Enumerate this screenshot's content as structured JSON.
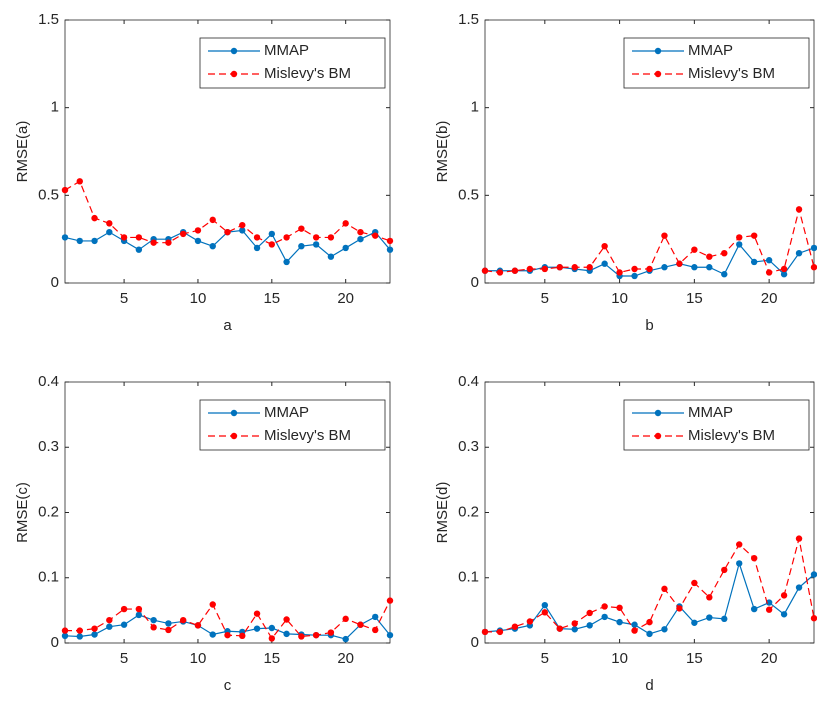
{
  "chart_data": [
    {
      "type": "line",
      "xlabel": "a",
      "ylabel": "RMSE(a)",
      "x": [
        1,
        2,
        3,
        4,
        5,
        6,
        7,
        8,
        9,
        10,
        11,
        12,
        13,
        14,
        15,
        16,
        17,
        18,
        19,
        20,
        21,
        22,
        23
      ],
      "xlim": [
        1,
        23
      ],
      "xticks": [
        5,
        10,
        15,
        20
      ],
      "ylim": [
        0,
        1.5
      ],
      "yticks": [
        0,
        0.5,
        1,
        1.5
      ],
      "legend": "upper right",
      "series": [
        {
          "name": "MMAP",
          "color": "#0072bd",
          "linestyle": "solid",
          "values": [
            0.26,
            0.24,
            0.24,
            0.29,
            0.24,
            0.19,
            0.25,
            0.25,
            0.29,
            0.24,
            0.21,
            0.29,
            0.3,
            0.2,
            0.28,
            0.12,
            0.21,
            0.22,
            0.15,
            0.2,
            0.25,
            0.29,
            0.19
          ]
        },
        {
          "name": "Mislevy's BM",
          "color": "#ff0000",
          "linestyle": "dashed",
          "values": [
            0.53,
            0.58,
            0.37,
            0.34,
            0.26,
            0.26,
            0.23,
            0.23,
            0.28,
            0.3,
            0.36,
            0.29,
            0.33,
            0.26,
            0.22,
            0.26,
            0.31,
            0.26,
            0.26,
            0.34,
            0.29,
            0.27,
            0.24
          ]
        }
      ]
    },
    {
      "type": "line",
      "xlabel": "b",
      "ylabel": "RMSE(b)",
      "x": [
        1,
        2,
        3,
        4,
        5,
        6,
        7,
        8,
        9,
        10,
        11,
        12,
        13,
        14,
        15,
        16,
        17,
        18,
        19,
        20,
        21,
        22,
        23
      ],
      "xlim": [
        1,
        23
      ],
      "xticks": [
        5,
        10,
        15,
        20
      ],
      "ylim": [
        0,
        1.5
      ],
      "yticks": [
        0,
        0.5,
        1,
        1.5
      ],
      "legend": "upper right",
      "series": [
        {
          "name": "MMAP",
          "color": "#0072bd",
          "linestyle": "solid",
          "values": [
            0.07,
            0.07,
            0.07,
            0.07,
            0.09,
            0.09,
            0.08,
            0.07,
            0.11,
            0.04,
            0.04,
            0.07,
            0.09,
            0.11,
            0.09,
            0.09,
            0.05,
            0.22,
            0.12,
            0.13,
            0.05,
            0.17,
            0.2
          ]
        },
        {
          "name": "Mislevy's BM",
          "color": "#ff0000",
          "linestyle": "dashed",
          "values": [
            0.07,
            0.06,
            0.07,
            0.08,
            0.08,
            0.09,
            0.09,
            0.09,
            0.21,
            0.06,
            0.08,
            0.08,
            0.27,
            0.11,
            0.19,
            0.15,
            0.17,
            0.26,
            0.27,
            0.06,
            0.08,
            0.42,
            0.09
          ]
        }
      ]
    },
    {
      "type": "line",
      "xlabel": "c",
      "ylabel": "RMSE(c)",
      "x": [
        1,
        2,
        3,
        4,
        5,
        6,
        7,
        8,
        9,
        10,
        11,
        12,
        13,
        14,
        15,
        16,
        17,
        18,
        19,
        20,
        21,
        22,
        23
      ],
      "xlim": [
        1,
        23
      ],
      "xticks": [
        5,
        10,
        15,
        20
      ],
      "ylim": [
        0,
        0.4
      ],
      "yticks": [
        0,
        0.1,
        0.2,
        0.3,
        0.4
      ],
      "legend": "upper right",
      "series": [
        {
          "name": "MMAP",
          "color": "#0072bd",
          "linestyle": "solid",
          "values": [
            0.011,
            0.01,
            0.013,
            0.025,
            0.028,
            0.043,
            0.035,
            0.03,
            0.033,
            0.027,
            0.013,
            0.018,
            0.017,
            0.022,
            0.023,
            0.014,
            0.013,
            0.012,
            0.012,
            0.006,
            0.028,
            0.04,
            0.012
          ]
        },
        {
          "name": "Mislevy's BM",
          "color": "#ff0000",
          "linestyle": "dashed",
          "values": [
            0.019,
            0.019,
            0.022,
            0.035,
            0.052,
            0.052,
            0.024,
            0.02,
            0.035,
            0.027,
            0.059,
            0.012,
            0.011,
            0.045,
            0.007,
            0.036,
            0.01,
            0.012,
            0.016,
            0.037,
            0.028,
            0.02,
            0.065
          ]
        }
      ]
    },
    {
      "type": "line",
      "xlabel": "d",
      "ylabel": "RMSE(d)",
      "x": [
        1,
        2,
        3,
        4,
        5,
        6,
        7,
        8,
        9,
        10,
        11,
        12,
        13,
        14,
        15,
        16,
        17,
        18,
        19,
        20,
        21,
        22,
        23
      ],
      "xlim": [
        1,
        23
      ],
      "xticks": [
        5,
        10,
        15,
        20
      ],
      "ylim": [
        0,
        0.4
      ],
      "yticks": [
        0,
        0.1,
        0.2,
        0.3,
        0.4
      ],
      "legend": "upper right",
      "series": [
        {
          "name": "MMAP",
          "color": "#0072bd",
          "linestyle": "solid",
          "values": [
            0.017,
            0.019,
            0.022,
            0.027,
            0.058,
            0.022,
            0.021,
            0.027,
            0.04,
            0.032,
            0.028,
            0.014,
            0.021,
            0.056,
            0.031,
            0.039,
            0.037,
            0.122,
            0.052,
            0.062,
            0.044,
            0.085,
            0.105
          ]
        },
        {
          "name": "Mislevy's BM",
          "color": "#ff0000",
          "linestyle": "dashed",
          "values": [
            0.017,
            0.017,
            0.025,
            0.033,
            0.047,
            0.022,
            0.03,
            0.046,
            0.056,
            0.054,
            0.019,
            0.032,
            0.083,
            0.053,
            0.092,
            0.07,
            0.112,
            0.151,
            0.13,
            0.051,
            0.073,
            0.16,
            0.038
          ]
        }
      ]
    }
  ]
}
